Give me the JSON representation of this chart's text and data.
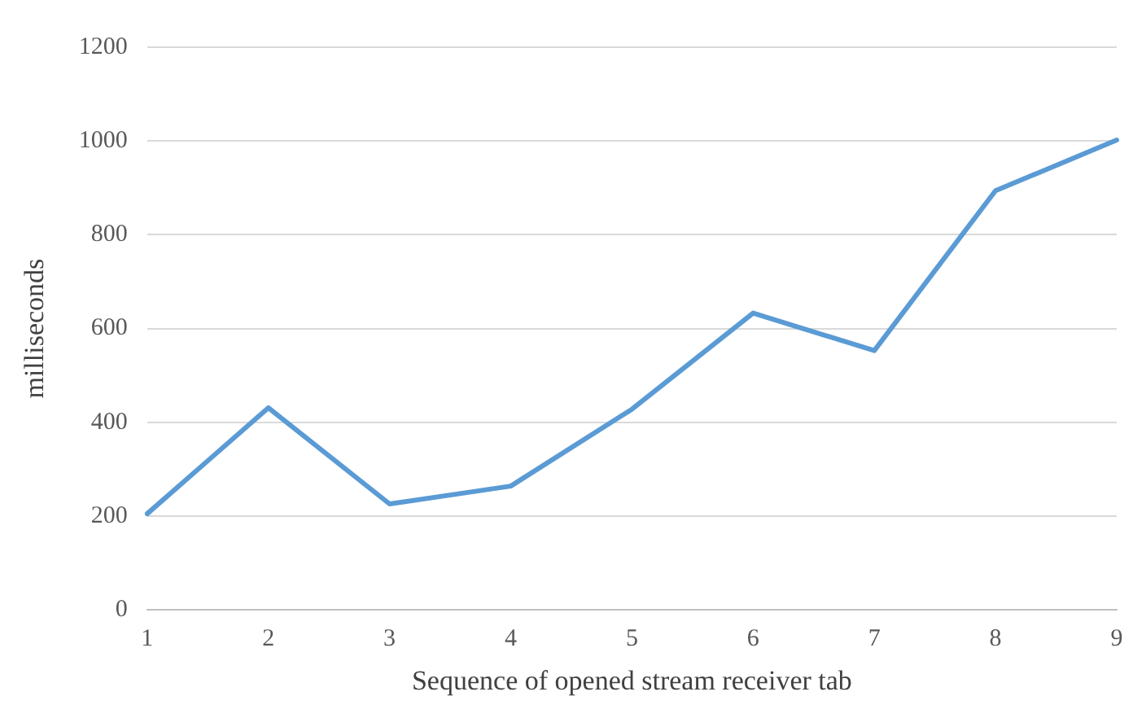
{
  "chart_data": {
    "type": "line",
    "xlabel": "Sequence of opened stream receiver tab",
    "ylabel": "milliseconds",
    "categories": [
      "1",
      "2",
      "3",
      "4",
      "5",
      "6",
      "7",
      "8",
      "9"
    ],
    "series": [
      {
        "color": "#5b9bd5",
        "values": [
          205,
          431,
          226,
          264,
          428,
          633,
          553,
          894,
          1002
        ]
      }
    ],
    "ylim": [
      0,
      1200
    ],
    "yticks": [
      0,
      200,
      400,
      600,
      800,
      1000,
      1200
    ],
    "grid": "y",
    "legend": false,
    "marker": "none",
    "line_style": "solid"
  }
}
